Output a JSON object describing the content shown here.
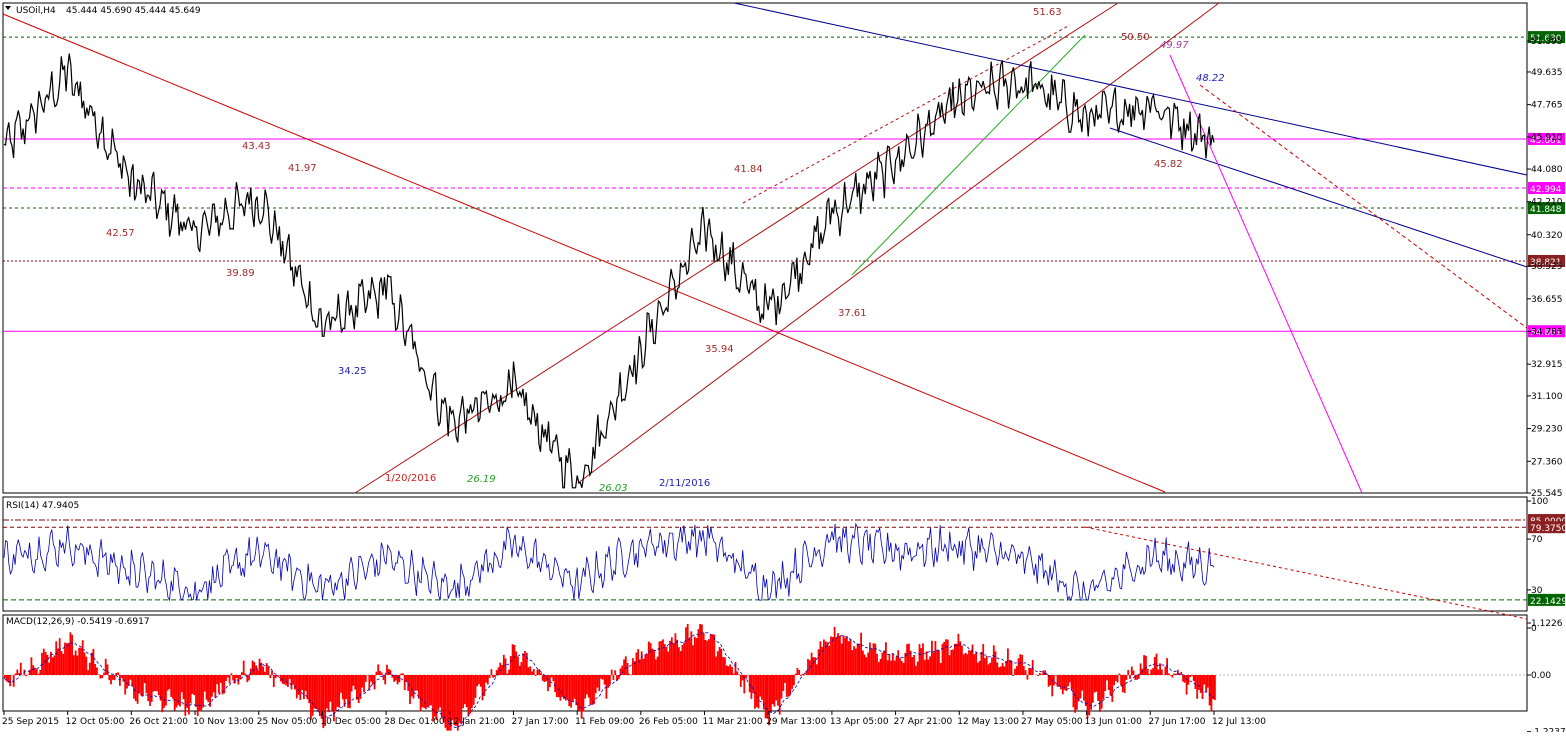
{
  "colors": {
    "background": "#ffffff",
    "price": "#000000",
    "rsi_line": "#0000b4",
    "macd_hist": "#ff0000",
    "signal": "#0000b4",
    "red_line": "#cc0000",
    "dark_red_channel": "#b01010",
    "magenta": "#ff00ff",
    "navy_channel": "#000090",
    "green_dotted": "#006400",
    "brown_label": "#a52a2a"
  },
  "header": {
    "symbol": "USOil,H4",
    "values": "45.444 45.690 45.444 45.649"
  },
  "x_axis": {
    "labels": [
      "25 Sep 2015",
      "12 Oct 05:00",
      "26 Oct 21:00",
      "10 Nov 13:00",
      "25 Nov 05:00",
      "10 Dec 05:00",
      "28 Dec 01:00",
      "12 Jan 21:00",
      "27 Jan 17:00",
      "11 Feb 09:00",
      "26 Feb 05:00",
      "11 Mar 21:00",
      "29 Mar 13:00",
      "13 Apr 05:00",
      "27 Apr 21:00",
      "12 May 13:00",
      "27 May 05:00",
      "13 Jun 01:00",
      "27 Jun 17:00",
      "12 Jul 13:00"
    ]
  },
  "chart_data": [
    {
      "type": "line",
      "panel": "price",
      "ylim": [
        25.545,
        53.58
      ],
      "y_ticks": [
        "51.395",
        "49.635",
        "47.765",
        "45.910",
        "44.080",
        "42.210",
        "40.320",
        "38.525",
        "36.655",
        "34.785",
        "32.915",
        "31.100",
        "29.230",
        "27.360",
        "25.545"
      ],
      "price_keypoints": [
        {
          "x": "25 Sep 2015",
          "y": 45.2
        },
        {
          "x": "12 Oct 05:00",
          "y": 49.5
        },
        {
          "x": "26 Oct 21:00",
          "y": 43.4
        },
        {
          "x": "10 Nov 13:00",
          "y": 40.5
        },
        {
          "x": "25 Nov 05:00",
          "y": 42.5
        },
        {
          "x": "10 Dec 05:00",
          "y": 35.0
        },
        {
          "x": "28 Dec 01:00",
          "y": 37.2
        },
        {
          "x": "12 Jan 21:00",
          "y": 29.5
        },
        {
          "x": "27 Jan 17:00",
          "y": 31.5
        },
        {
          "x": "11 Feb 09:00",
          "y": 26.1
        },
        {
          "x": "26 Feb 05:00",
          "y": 33.8
        },
        {
          "x": "11 Mar 21:00",
          "y": 40.6
        },
        {
          "x": "29 Mar 13:00",
          "y": 35.8
        },
        {
          "x": "13 Apr 05:00",
          "y": 41.4
        },
        {
          "x": "27 Apr 21:00",
          "y": 44.5
        },
        {
          "x": "12 May 13:00",
          "y": 48.1
        },
        {
          "x": "27 May 05:00",
          "y": 49.2
        },
        {
          "x": "13 Jun 01:00",
          "y": 47.0
        },
        {
          "x": "27 Jun 17:00",
          "y": 47.8
        },
        {
          "x": "12 Jul 13:00",
          "y": 45.6
        }
      ],
      "levels": [
        {
          "label": "51.630",
          "value": 51.63,
          "style": "green-dotted"
        },
        {
          "label": "45.801",
          "value": 45.801,
          "style": "magenta"
        },
        {
          "label": "42.994",
          "value": 42.994,
          "style": "magenta-dashed"
        },
        {
          "label": "41.848",
          "value": 41.848,
          "style": "green-dotted"
        },
        {
          "label": "38.821",
          "value": 38.821,
          "style": "darkred-dotted"
        },
        {
          "label": "34.801",
          "value": 34.801,
          "style": "magenta"
        }
      ],
      "annotations": [
        {
          "text": "51.63",
          "color": "brown"
        },
        {
          "text": "50.50",
          "color": "brown"
        },
        {
          "text": "49.97",
          "color": "purple"
        },
        {
          "text": "48.22",
          "color": "blue"
        },
        {
          "text": "43.43",
          "color": "brown"
        },
        {
          "text": "41.97",
          "color": "brown"
        },
        {
          "text": "42.57",
          "color": "brown"
        },
        {
          "text": "39.89",
          "color": "brown"
        },
        {
          "text": "41.84",
          "color": "brown"
        },
        {
          "text": "45.82",
          "color": "brown"
        },
        {
          "text": "37.61",
          "color": "brown"
        },
        {
          "text": "35.94",
          "color": "brown"
        },
        {
          "text": "34.25",
          "color": "blue"
        },
        {
          "text": "1/20/2016",
          "color": "red"
        },
        {
          "text": "26.19",
          "color": "green"
        },
        {
          "text": "26.03",
          "color": "green"
        },
        {
          "text": "2/11/2016",
          "color": "blue"
        }
      ]
    },
    {
      "type": "line",
      "panel": "rsi",
      "title": "RSI(14) 47.9405",
      "ylim": [
        0,
        100
      ],
      "y_ticks": [
        "100",
        "70",
        "30",
        "0"
      ],
      "levels": [
        {
          "label": "85.0000",
          "value": 85,
          "style": "darkred-dashdot"
        },
        {
          "label": "79.3750",
          "value": 79.375,
          "style": "darkred-dashed"
        },
        {
          "label": "22.1429",
          "value": 22.1429,
          "style": "green-dashed"
        }
      ],
      "rsi_keypoints": [
        {
          "x": "25 Sep 2015",
          "y": 55
        },
        {
          "x": "12 Oct 05:00",
          "y": 65
        },
        {
          "x": "26 Oct 21:00",
          "y": 45
        },
        {
          "x": "10 Nov 13:00",
          "y": 30
        },
        {
          "x": "25 Nov 05:00",
          "y": 60
        },
        {
          "x": "10 Dec 05:00",
          "y": 30
        },
        {
          "x": "28 Dec 01:00",
          "y": 55
        },
        {
          "x": "12 Jan 21:00",
          "y": 30
        },
        {
          "x": "27 Jan 17:00",
          "y": 65
        },
        {
          "x": "11 Feb 09:00",
          "y": 35
        },
        {
          "x": "26 Feb 05:00",
          "y": 65
        },
        {
          "x": "11 Mar 21:00",
          "y": 72
        },
        {
          "x": "29 Mar 13:00",
          "y": 30
        },
        {
          "x": "13 Apr 05:00",
          "y": 70
        },
        {
          "x": "27 Apr 21:00",
          "y": 60
        },
        {
          "x": "12 May 13:00",
          "y": 65
        },
        {
          "x": "27 May 05:00",
          "y": 55
        },
        {
          "x": "13 Jun 01:00",
          "y": 25
        },
        {
          "x": "27 Jun 17:00",
          "y": 55
        },
        {
          "x": "12 Jul 13:00",
          "y": 47.9
        }
      ]
    },
    {
      "type": "bar",
      "panel": "macd",
      "title": "MACD(12,26,9) -0.5419 -0.6917",
      "ylim": [
        -1.2237,
        1.1226
      ],
      "y_ticks": [
        "1.1226",
        "0.00",
        "-1.2237"
      ],
      "macd_keypoints": [
        {
          "x": "25 Sep 2015",
          "y": -0.2
        },
        {
          "x": "12 Oct 05:00",
          "y": 0.75
        },
        {
          "x": "26 Oct 21:00",
          "y": -0.4
        },
        {
          "x": "10 Nov 13:00",
          "y": -0.7
        },
        {
          "x": "25 Nov 05:00",
          "y": 0.3
        },
        {
          "x": "10 Dec 05:00",
          "y": -0.95
        },
        {
          "x": "28 Dec 01:00",
          "y": 0.1
        },
        {
          "x": "12 Jan 21:00",
          "y": -1.15
        },
        {
          "x": "27 Jan 17:00",
          "y": 0.5
        },
        {
          "x": "11 Feb 09:00",
          "y": -0.8
        },
        {
          "x": "26 Feb 05:00",
          "y": 0.5
        },
        {
          "x": "11 Mar 21:00",
          "y": 0.95
        },
        {
          "x": "29 Mar 13:00",
          "y": -0.9
        },
        {
          "x": "13 Apr 05:00",
          "y": 0.9
        },
        {
          "x": "27 Apr 21:00",
          "y": 0.4
        },
        {
          "x": "12 May 13:00",
          "y": 0.6
        },
        {
          "x": "27 May 05:00",
          "y": 0.2
        },
        {
          "x": "13 Jun 01:00",
          "y": -0.7
        },
        {
          "x": "27 Jun 17:00",
          "y": 0.3
        },
        {
          "x": "12 Jul 13:00",
          "y": -0.54
        }
      ]
    }
  ]
}
